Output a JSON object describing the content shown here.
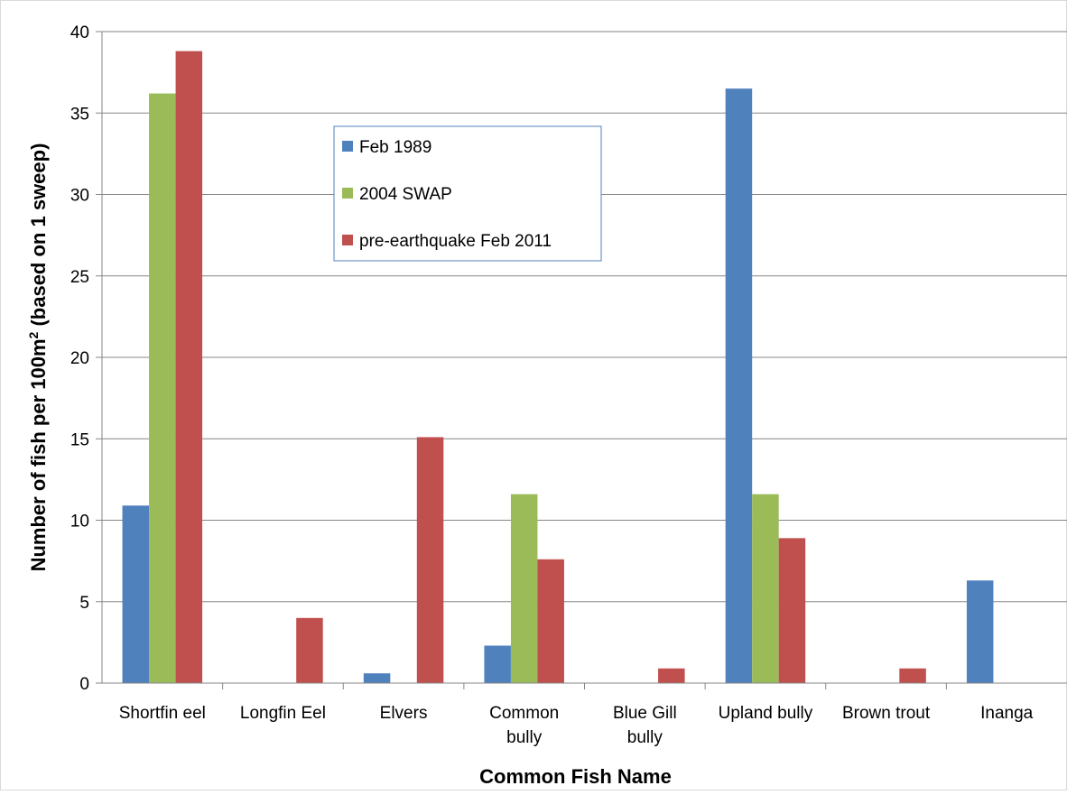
{
  "chart_data": {
    "type": "bar",
    "categories": [
      [
        "Shortfin eel"
      ],
      [
        "Longfin Eel"
      ],
      [
        "Elvers"
      ],
      [
        "Common",
        "bully"
      ],
      [
        "Blue Gill",
        "bully"
      ],
      [
        "Upland bully"
      ],
      [
        "Brown trout"
      ],
      [
        "Inanga"
      ]
    ],
    "series": [
      {
        "name": "Feb 1989",
        "color": "#4F81BD",
        "values": [
          10.9,
          0,
          0.6,
          2.3,
          0,
          36.5,
          0,
          6.3
        ]
      },
      {
        "name": "2004 SWAP",
        "color": "#9BBB59",
        "values": [
          36.2,
          0,
          0,
          11.6,
          0,
          11.6,
          0,
          0
        ]
      },
      {
        "name": "pre-earthquake Feb 2011",
        "color": "#C0504D",
        "values": [
          38.8,
          4.0,
          15.1,
          7.6,
          0.9,
          8.9,
          0.9,
          0
        ]
      }
    ],
    "xlabel": "Common Fish Name",
    "ylabel": {
      "main": "Number of fish per 100m",
      "superscript": "2",
      "suffix": " (based on 1 sweep)"
    },
    "ylim": [
      0,
      40
    ],
    "yticks": [
      0,
      5,
      10,
      15,
      20,
      25,
      30,
      35,
      40
    ],
    "grid": true,
    "legend_position": "inside-top-center"
  }
}
